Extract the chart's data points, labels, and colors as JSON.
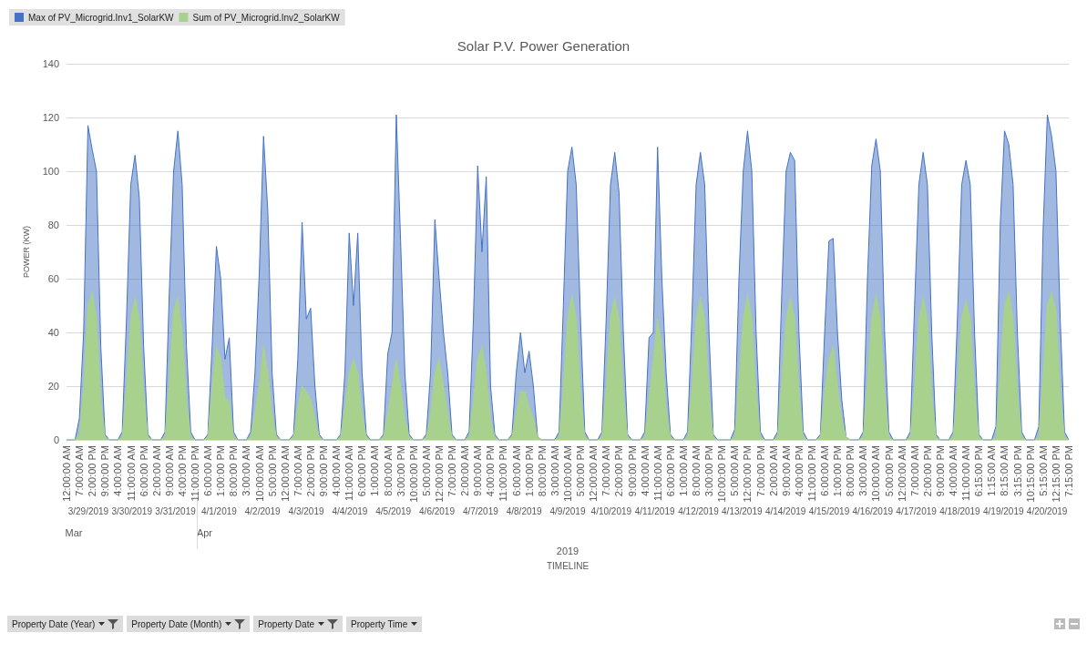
{
  "chart_data": {
    "type": "area",
    "title": "Solar P.V. Power Generation",
    "ylabel": "POWER (KW)",
    "categories": [
      "12:00:00 AM",
      null,
      null,
      "7:00:00 AM",
      null,
      null,
      "2:00:00 PM",
      null,
      null,
      "9:00:00 PM",
      null,
      null,
      "4:00:00 AM",
      null,
      null,
      "11:00:00 AM",
      null,
      null,
      "6:00:00 PM",
      null,
      null,
      "2:00:00 AM",
      null,
      null,
      "9:00:00 AM",
      null,
      null,
      "4:00:00 PM",
      null,
      null,
      "11:00:00 PM",
      null,
      null,
      "6:00:00 AM",
      null,
      null,
      "1:00:00 PM",
      null,
      null,
      "8:00:00 PM",
      null,
      null,
      "3:00:00 AM",
      null,
      null,
      "10:00:00 AM",
      null,
      null,
      "5:00:00 PM",
      null,
      null,
      "12:00:00 AM",
      null,
      null,
      "7:00:00 AM",
      null,
      null,
      "2:00:00 PM",
      null,
      null,
      "9:00:00 PM",
      null,
      null,
      "4:00:00 AM",
      null,
      null,
      "11:00:00 AM",
      null,
      null,
      "6:00:00 PM",
      null,
      null,
      "1:00:00 AM",
      null,
      null,
      "8:00:00 AM",
      null,
      null,
      "3:00:00 PM",
      null,
      null,
      "10:00:00 PM",
      null,
      null,
      "5:00:00 AM",
      null,
      null,
      "12:00:00 PM",
      null,
      null,
      "7:00:00 PM",
      null,
      null,
      "2:00:00 AM",
      null,
      null,
      "9:00:00 AM",
      null,
      null,
      "4:00:00 PM",
      null,
      null,
      "11:00:00 PM",
      null,
      null,
      "6:00:00 AM",
      null,
      null,
      "1:00:00 PM",
      null,
      null,
      "8:00:00 PM",
      null,
      null,
      "3:00:00 AM",
      null,
      null,
      "10:00:00 AM",
      null,
      null,
      "5:00:00 PM",
      null,
      null,
      "12:00:00 AM",
      null,
      null,
      "7:00:00 AM",
      null,
      null,
      "2:00:00 PM",
      null,
      null,
      "9:00:00 PM",
      null,
      null,
      "4:00:00 AM",
      null,
      null,
      "11:00:00 AM",
      null,
      null,
      "6:00:00 PM",
      null,
      null,
      "1:00:00 AM",
      null,
      null,
      "8:00:00 AM",
      null,
      null,
      "3:00:00 PM",
      null,
      null,
      "10:00:00 PM",
      null,
      null,
      "5:00:00 AM",
      null,
      null,
      "12:00:00 PM",
      null,
      null,
      "7:00:00 PM",
      null,
      null,
      "2:00:00 AM",
      null,
      null,
      "9:00:00 AM",
      null,
      null,
      "4:00:00 PM",
      null,
      null,
      "11:00:00 PM",
      null,
      null,
      "6:00:00 AM",
      null,
      null,
      "1:00:00 PM",
      null,
      null,
      "8:00:00 PM",
      null,
      null,
      "3:00:00 AM",
      null,
      null,
      "10:00:00 AM",
      null,
      null,
      "5:00:00 PM",
      null,
      null,
      "12:00:00 AM",
      null,
      null,
      "7:00:00 AM",
      null,
      null,
      "2:00:00 PM",
      null,
      null,
      "9:00:00 PM",
      null,
      null,
      "4:00:00 AM",
      null,
      null,
      "11:00:00 AM",
      null,
      null,
      "6:15:00 PM",
      null,
      null,
      "1:15:00 AM",
      null,
      null,
      "8:15:00 AM",
      null,
      null,
      "3:15:00 PM",
      null,
      null,
      "10:15:00 PM",
      null,
      null,
      "5:15:00 AM",
      null,
      null,
      "12:15:00 PM",
      null,
      null,
      "7:15:00 PM"
    ],
    "series": [
      {
        "name": "Max of PV_Microgrid.Inv1_SolarKW",
        "color": "#4472c4",
        "values": [
          0,
          0,
          0,
          8,
          40,
          117,
          108,
          100,
          35,
          2,
          0,
          0,
          0,
          3,
          45,
          95,
          106,
          90,
          35,
          2,
          0,
          0,
          0,
          3,
          55,
          100,
          115,
          95,
          35,
          3,
          0,
          0,
          0,
          2,
          35,
          72,
          60,
          30,
          38,
          3,
          0,
          0,
          0,
          3,
          25,
          62,
          113,
          85,
          25,
          2,
          0,
          0,
          0,
          2,
          30,
          81,
          45,
          49,
          20,
          2,
          0,
          0,
          0,
          0,
          2,
          25,
          77,
          50,
          77,
          25,
          2,
          0,
          0,
          0,
          2,
          32,
          40,
          121,
          74,
          25,
          2,
          0,
          0,
          0,
          2,
          25,
          82,
          60,
          40,
          25,
          2,
          0,
          0,
          0,
          3,
          45,
          102,
          70,
          98,
          20,
          2,
          0,
          0,
          0,
          2,
          25,
          40,
          25,
          33,
          20,
          1,
          0,
          0,
          0,
          0,
          3,
          50,
          100,
          109,
          95,
          45,
          3,
          0,
          0,
          0,
          3,
          45,
          95,
          107,
          92,
          40,
          2,
          0,
          0,
          0,
          3,
          38,
          40,
          109,
          60,
          25,
          2,
          0,
          0,
          0,
          3,
          45,
          95,
          107,
          95,
          40,
          2,
          0,
          0,
          0,
          0,
          4,
          60,
          100,
          115,
          100,
          40,
          3,
          0,
          0,
          0,
          3,
          55,
          100,
          107,
          104,
          40,
          3,
          0,
          0,
          0,
          2,
          40,
          74,
          75,
          40,
          15,
          1,
          0,
          0,
          0,
          3,
          60,
          102,
          112,
          100,
          40,
          3,
          0,
          0,
          0,
          0,
          3,
          50,
          95,
          107,
          95,
          40,
          2,
          0,
          0,
          0,
          3,
          45,
          95,
          104,
          95,
          40,
          2,
          0,
          0,
          0,
          5,
          80,
          115,
          110,
          95,
          40,
          3,
          0,
          0,
          0,
          5,
          78,
          121,
          113,
          100,
          45,
          3,
          0
        ]
      },
      {
        "name": "Sum of PV_Microgrid.Inv2_SolarKW",
        "color": "#a9d18e",
        "values": [
          0,
          0,
          0,
          2,
          20,
          50,
          55,
          45,
          15,
          1,
          0,
          0,
          0,
          1,
          20,
          45,
          53,
          45,
          18,
          1,
          0,
          0,
          0,
          1,
          22,
          48,
          53,
          40,
          15,
          1,
          0,
          0,
          0,
          1,
          20,
          35,
          30,
          15,
          15,
          1,
          0,
          0,
          0,
          1,
          10,
          20,
          35,
          25,
          10,
          1,
          0,
          0,
          0,
          1,
          12,
          20,
          18,
          15,
          8,
          1,
          0,
          0,
          0,
          0,
          1,
          12,
          25,
          30,
          25,
          10,
          1,
          0,
          0,
          0,
          1,
          10,
          20,
          30,
          20,
          8,
          1,
          0,
          0,
          0,
          1,
          10,
          25,
          30,
          20,
          10,
          1,
          0,
          0,
          0,
          1,
          15,
          30,
          35,
          25,
          8,
          1,
          0,
          0,
          0,
          1,
          10,
          18,
          18,
          12,
          8,
          1,
          0,
          0,
          0,
          0,
          1,
          20,
          45,
          54,
          45,
          18,
          1,
          0,
          0,
          0,
          1,
          20,
          45,
          53,
          45,
          18,
          1,
          0,
          0,
          0,
          1,
          15,
          30,
          45,
          35,
          12,
          1,
          0,
          0,
          0,
          1,
          20,
          45,
          53,
          45,
          18,
          1,
          0,
          0,
          0,
          0,
          1,
          22,
          45,
          54,
          45,
          18,
          1,
          0,
          0,
          0,
          1,
          22,
          45,
          53,
          45,
          18,
          1,
          0,
          0,
          0,
          1,
          18,
          30,
          35,
          20,
          8,
          1,
          0,
          0,
          0,
          1,
          22,
          45,
          54,
          45,
          18,
          1,
          0,
          0,
          0,
          0,
          1,
          20,
          45,
          53,
          45,
          18,
          1,
          0,
          0,
          0,
          1,
          20,
          45,
          52,
          45,
          18,
          1,
          0,
          0,
          0,
          1,
          25,
          50,
          55,
          45,
          18,
          1,
          0,
          0,
          0,
          1,
          25,
          50,
          55,
          48,
          18,
          1,
          0
        ]
      }
    ],
    "ylim": [
      0,
      140
    ],
    "yticks": [
      0,
      20,
      40,
      60,
      80,
      100,
      120,
      140
    ],
    "grid": "y",
    "legend": "top left",
    "marker": "none",
    "annotations": [
      "3/29/2019",
      "3/30/2019",
      "3/31/2019",
      "4/1/2019",
      "4/2/2019",
      "4/3/2019",
      "4/4/2019",
      "4/5/2019",
      "4/6/2019",
      "4/7/2019",
      "4/8/2019",
      "4/9/2019",
      "4/10/2019",
      "4/11/2019",
      "4/12/2019",
      "4/13/2019",
      "4/14/2019",
      "4/15/2019",
      "4/16/2019",
      "4/17/2019",
      "4/18/2019",
      "4/19/2019",
      "4/20/2019",
      "Mar",
      "Apr",
      "2019",
      "TIMELINE",
      "Property Date (Year)",
      "Property Date (Month)",
      "Property Date",
      "Property Time"
    ]
  }
}
